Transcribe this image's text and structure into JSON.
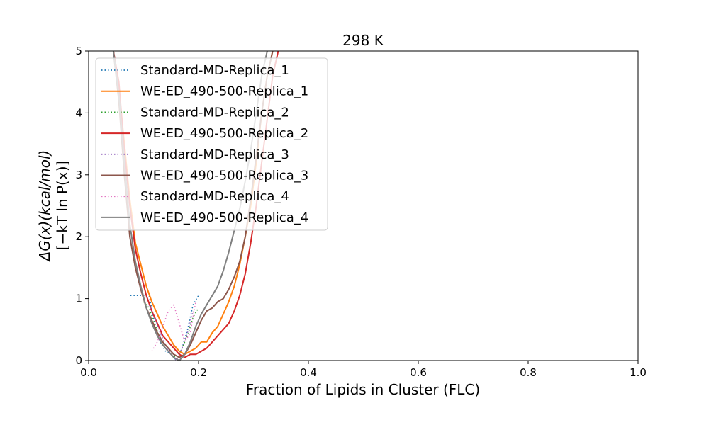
{
  "chart_data": {
    "type": "line",
    "title": "298 K",
    "xlabel": "Fraction of Lipids in Cluster (FLC)",
    "ylabel_line1": "ΔG(x)(kcal/mol)",
    "ylabel_line2": "[−kT ln P(x)]",
    "xlim": [
      0.0,
      1.0
    ],
    "ylim": [
      0,
      5
    ],
    "xticks": [
      "0.0",
      "0.2",
      "0.4",
      "0.6",
      "0.8",
      "1.0"
    ],
    "yticks": [
      "0",
      "1",
      "2",
      "3",
      "4",
      "5"
    ],
    "grid": false,
    "legend_position": "top-left",
    "series": [
      {
        "name": "Standard-MD-Replica_1",
        "color": "#1f77b4",
        "style": "dotted",
        "x": [
          0.076,
          0.11,
          0.12,
          0.13,
          0.14,
          0.15,
          0.16,
          0.17,
          0.18,
          0.19,
          0.2
        ],
        "y": [
          1.05,
          1.05,
          0.6,
          0.3,
          0.15,
          0.1,
          0.0,
          0.2,
          0.5,
          0.9,
          1.05
        ]
      },
      {
        "name": "WE-ED_490-500-Replica_1",
        "color": "#ff7f0e",
        "style": "solid",
        "x": [
          0.045,
          0.055,
          0.065,
          0.075,
          0.085,
          0.095,
          0.105,
          0.115,
          0.125,
          0.135,
          0.145,
          0.155,
          0.165,
          0.175,
          0.185,
          0.195,
          0.205,
          0.215,
          0.225,
          0.235,
          0.245,
          0.255,
          0.265,
          0.275,
          0.285,
          0.295,
          0.305,
          0.315,
          0.325,
          0.335
        ],
        "y": [
          5.0,
          4.4,
          3.5,
          2.6,
          1.9,
          1.55,
          1.2,
          0.95,
          0.75,
          0.55,
          0.4,
          0.25,
          0.15,
          0.1,
          0.15,
          0.2,
          0.3,
          0.3,
          0.45,
          0.55,
          0.75,
          0.95,
          1.2,
          1.55,
          2.0,
          2.5,
          3.2,
          4.0,
          4.6,
          5.0
        ]
      },
      {
        "name": "Standard-MD-Replica_2",
        "color": "#2ca02c",
        "style": "dotted",
        "x": [
          0.1,
          0.11,
          0.12,
          0.13,
          0.14,
          0.15,
          0.16,
          0.17,
          0.18,
          0.19,
          0.2
        ],
        "y": [
          0.95,
          0.85,
          0.6,
          0.35,
          0.2,
          0.1,
          0.05,
          0.2,
          0.4,
          0.7,
          0.85
        ]
      },
      {
        "name": "WE-ED_490-500-Replica_2",
        "color": "#d62728",
        "style": "solid",
        "x": [
          0.045,
          0.055,
          0.065,
          0.075,
          0.085,
          0.095,
          0.105,
          0.115,
          0.125,
          0.135,
          0.145,
          0.155,
          0.165,
          0.175,
          0.185,
          0.195,
          0.205,
          0.215,
          0.225,
          0.235,
          0.245,
          0.255,
          0.265,
          0.275,
          0.285,
          0.295,
          0.305,
          0.315,
          0.325,
          0.335,
          0.345
        ],
        "y": [
          5.0,
          4.5,
          3.4,
          2.5,
          1.8,
          1.4,
          1.05,
          0.8,
          0.6,
          0.4,
          0.3,
          0.2,
          0.1,
          0.05,
          0.1,
          0.1,
          0.15,
          0.2,
          0.3,
          0.4,
          0.5,
          0.6,
          0.8,
          1.05,
          1.4,
          1.9,
          2.5,
          3.2,
          3.9,
          4.6,
          5.0
        ]
      },
      {
        "name": "Standard-MD-Replica_3",
        "color": "#9467bd",
        "style": "dotted",
        "x": [
          0.11,
          0.12,
          0.13,
          0.14,
          0.15,
          0.16,
          0.17,
          0.18,
          0.19
        ],
        "y": [
          0.9,
          0.7,
          0.45,
          0.25,
          0.1,
          0.0,
          0.2,
          0.45,
          0.8
        ]
      },
      {
        "name": "WE-ED_490-500-Replica_3",
        "color": "#8c564b",
        "style": "solid",
        "x": [
          0.045,
          0.055,
          0.065,
          0.075,
          0.085,
          0.095,
          0.105,
          0.115,
          0.125,
          0.135,
          0.145,
          0.155,
          0.165,
          0.175,
          0.185,
          0.195,
          0.205,
          0.215,
          0.225,
          0.235,
          0.245,
          0.255,
          0.265,
          0.275,
          0.285,
          0.295,
          0.305,
          0.315,
          0.325,
          0.335
        ],
        "y": [
          5.0,
          4.2,
          3.0,
          2.0,
          1.5,
          1.15,
          0.85,
          0.65,
          0.45,
          0.3,
          0.2,
          0.1,
          0.05,
          0.1,
          0.25,
          0.45,
          0.65,
          0.8,
          0.85,
          0.95,
          1.0,
          1.15,
          1.35,
          1.6,
          2.0,
          2.6,
          3.3,
          4.0,
          4.6,
          5.0
        ]
      },
      {
        "name": "Standard-MD-Replica_4",
        "color": "#e377c2",
        "style": "dotted",
        "x": [
          0.115,
          0.125,
          0.135,
          0.145,
          0.155,
          0.165,
          0.175,
          0.185,
          0.195
        ],
        "y": [
          0.15,
          0.3,
          0.55,
          0.8,
          0.9,
          0.6,
          0.3,
          0.45,
          0.95
        ]
      },
      {
        "name": "WE-ED_490-500-Replica_4",
        "color": "#7f7f7f",
        "style": "solid",
        "x": [
          0.045,
          0.055,
          0.065,
          0.075,
          0.085,
          0.095,
          0.105,
          0.115,
          0.125,
          0.135,
          0.145,
          0.155,
          0.165,
          0.175,
          0.185,
          0.195,
          0.205,
          0.215,
          0.225,
          0.235,
          0.245,
          0.255,
          0.265,
          0.275,
          0.285,
          0.295,
          0.305,
          0.315,
          0.325
        ],
        "y": [
          5.0,
          4.3,
          3.2,
          2.2,
          1.6,
          1.2,
          0.85,
          0.6,
          0.4,
          0.25,
          0.15,
          0.05,
          0.0,
          0.1,
          0.3,
          0.55,
          0.75,
          0.9,
          1.05,
          1.2,
          1.45,
          1.75,
          2.1,
          2.45,
          2.9,
          3.4,
          4.0,
          4.6,
          5.0
        ]
      }
    ]
  }
}
